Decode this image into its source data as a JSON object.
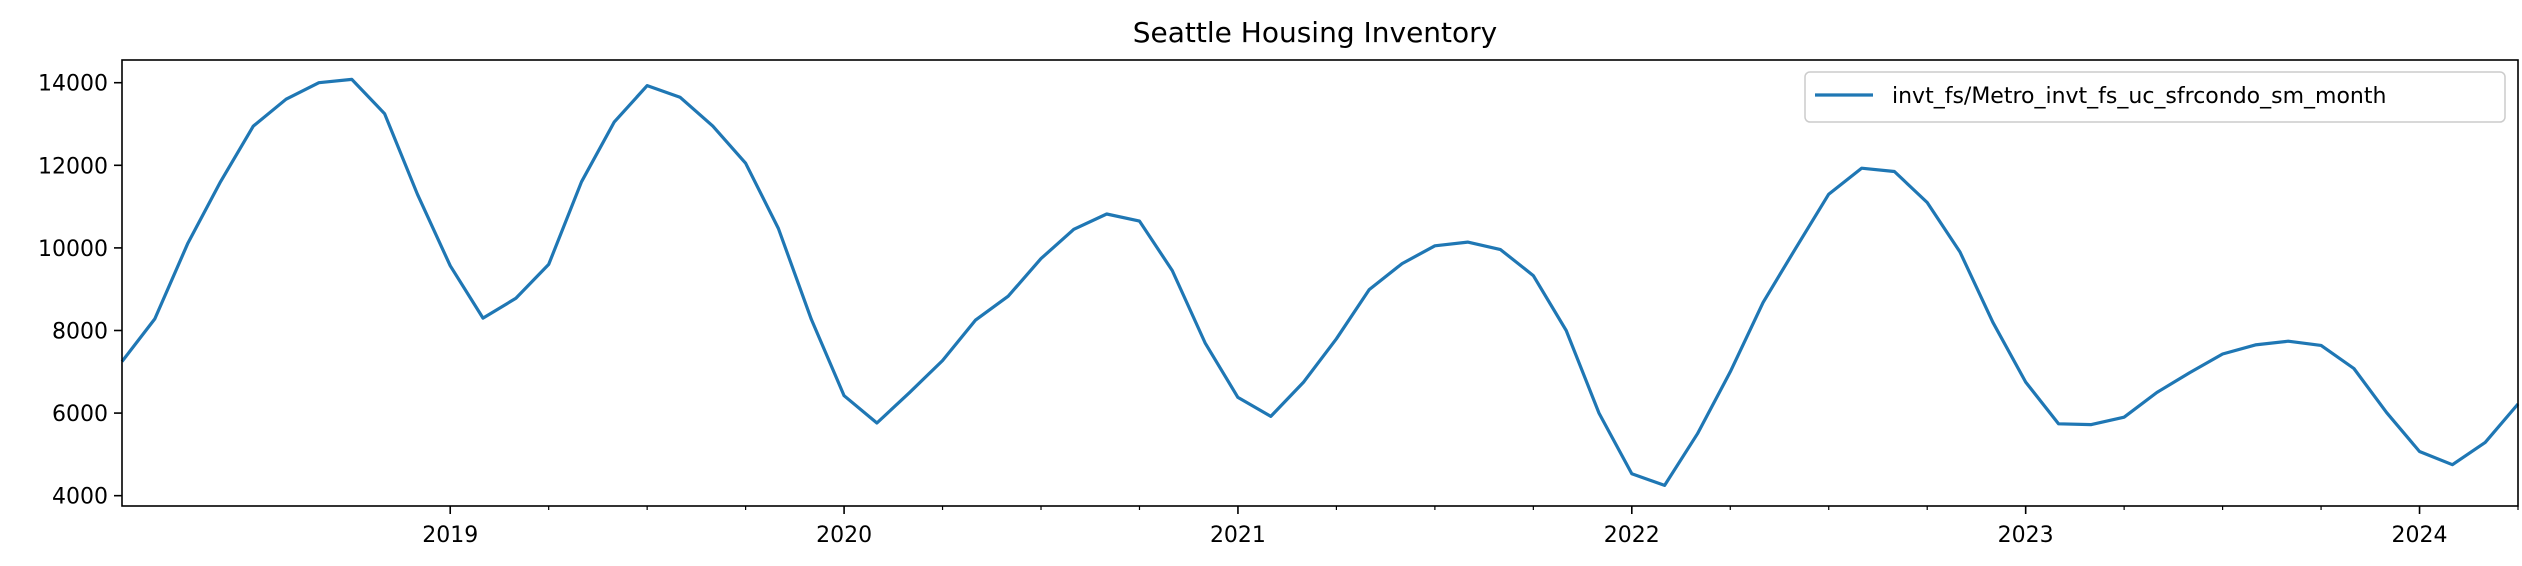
{
  "chart_data": {
    "type": "line",
    "title": "Seattle Housing Inventory",
    "xlabel": "",
    "ylabel": "",
    "x_start": "2018-03",
    "x_end": "2024-04",
    "ylim": [
      3750,
      14550
    ],
    "yticks": [
      4000,
      6000,
      8000,
      10000,
      12000,
      14000
    ],
    "xticks": [
      {
        "date": "2019-01",
        "label": "2019"
      },
      {
        "date": "2020-01",
        "label": "2020"
      },
      {
        "date": "2021-01",
        "label": "2021"
      },
      {
        "date": "2022-01",
        "label": "2022"
      },
      {
        "date": "2023-01",
        "label": "2023"
      },
      {
        "date": "2024-01",
        "label": "2024"
      }
    ],
    "minor_xticks": [
      "2019-04",
      "2019-07",
      "2019-10",
      "2020-04",
      "2020-07",
      "2020-10",
      "2021-04",
      "2021-07",
      "2021-10",
      "2022-04",
      "2022-07",
      "2022-10",
      "2023-04",
      "2023-07",
      "2023-10",
      "2024-04"
    ],
    "grid": false,
    "legend_position": "top-right",
    "series": [
      {
        "name": "invt_fs/Metro_invt_fs_uc_sfrcondo_sm_month",
        "color": "#1f77b4",
        "x": [
          "2018-03",
          "2018-04",
          "2018-05",
          "2018-06",
          "2018-07",
          "2018-08",
          "2018-09",
          "2018-10",
          "2018-11",
          "2018-12",
          "2019-01",
          "2019-02",
          "2019-03",
          "2019-04",
          "2019-05",
          "2019-06",
          "2019-07",
          "2019-08",
          "2019-09",
          "2019-10",
          "2019-11",
          "2019-12",
          "2020-01",
          "2020-02",
          "2020-03",
          "2020-04",
          "2020-05",
          "2020-06",
          "2020-07",
          "2020-08",
          "2020-09",
          "2020-10",
          "2020-11",
          "2020-12",
          "2021-01",
          "2021-02",
          "2021-03",
          "2021-04",
          "2021-05",
          "2021-06",
          "2021-07",
          "2021-08",
          "2021-09",
          "2021-10",
          "2021-11",
          "2021-12",
          "2022-01",
          "2022-02",
          "2022-03",
          "2022-04",
          "2022-05",
          "2022-06",
          "2022-07",
          "2022-08",
          "2022-09",
          "2022-10",
          "2022-11",
          "2022-12",
          "2023-01",
          "2023-02",
          "2023-03",
          "2023-04",
          "2023-05",
          "2023-06",
          "2023-07",
          "2023-08",
          "2023-09",
          "2023-10",
          "2023-11",
          "2023-12",
          "2024-01",
          "2024-02",
          "2024-03",
          "2024-04"
        ],
        "values": [
          7250,
          8280,
          10100,
          11600,
          12950,
          13600,
          14000,
          14080,
          13250,
          11300,
          9570,
          8300,
          8780,
          9600,
          11600,
          13050,
          13930,
          13650,
          12950,
          12050,
          10470,
          8270,
          6420,
          5760,
          6500,
          7270,
          8250,
          8830,
          9740,
          10450,
          10820,
          10650,
          9450,
          7700,
          6380,
          5920,
          6750,
          7800,
          8990,
          9620,
          10050,
          10140,
          9960,
          9330,
          8000,
          6000,
          4530,
          4250,
          5500,
          7000,
          8680,
          10000,
          11300,
          11930,
          11850,
          11100,
          9900,
          8200,
          6750,
          5740,
          5720,
          5900,
          6500,
          6980,
          7430,
          7650,
          7740,
          7640,
          7080,
          6010,
          5070,
          4750,
          5290,
          6220
        ]
      }
    ]
  }
}
